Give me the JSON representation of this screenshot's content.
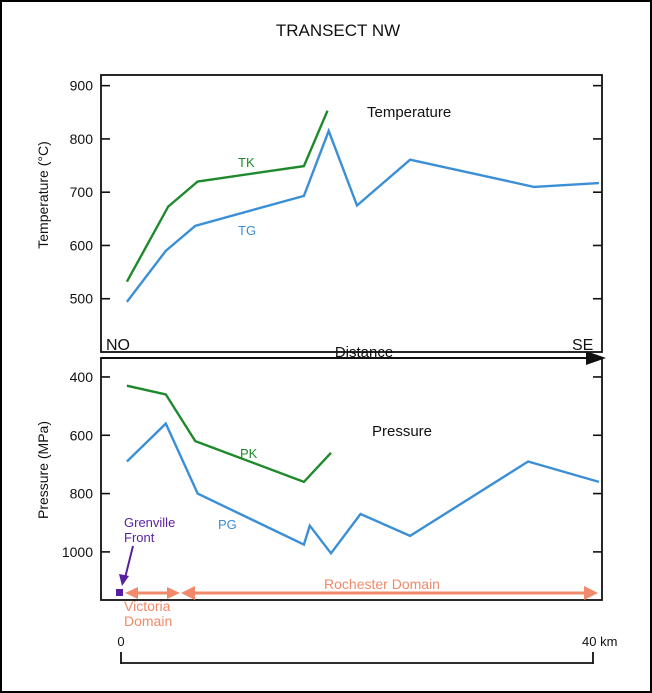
{
  "title": "TRANSECT NW",
  "colors": {
    "green": "#1e8a2c",
    "blue": "#3b8fd6",
    "purple": "#5a1fa0",
    "salmon": "#f08a6a",
    "axis": "#111111"
  },
  "chart_data": [
    {
      "type": "line",
      "title": "Temperature",
      "xlabel": "",
      "ylabel": "Temperature (°C)",
      "ylim": [
        400,
        920
      ],
      "xlim": [
        0,
        40
      ],
      "yticks": [
        500,
        600,
        700,
        800,
        900
      ],
      "series": [
        {
          "name": "TK",
          "color": "#1e8a2c",
          "points": [
            [
              0.5,
              532
            ],
            [
              4,
              673
            ],
            [
              6.5,
              720
            ],
            [
              15.5,
              749
            ],
            [
              17.5,
              853
            ]
          ]
        },
        {
          "name": "TG",
          "color": "#3b8fd6",
          "points": [
            [
              0.5,
              494
            ],
            [
              3.8,
              590
            ],
            [
              6.3,
              637
            ],
            [
              15.5,
              693
            ],
            [
              17.6,
              815
            ],
            [
              20,
              675
            ],
            [
              24.5,
              761
            ],
            [
              35,
              710
            ],
            [
              40.5,
              717
            ]
          ]
        }
      ]
    },
    {
      "type": "line",
      "title": "Pressure",
      "xlabel": "",
      "ylabel": "Pressure (MPa)",
      "ylim": [
        1165,
        335
      ],
      "xlim": [
        0,
        40
      ],
      "yticks": [
        400,
        600,
        800,
        1000
      ],
      "series": [
        {
          "name": "PK",
          "color": "#1e8a2c",
          "points": [
            [
              0.5,
              430
            ],
            [
              3.8,
              460
            ],
            [
              6.3,
              620
            ],
            [
              15.5,
              760
            ],
            [
              17.8,
              660
            ]
          ]
        },
        {
          "name": "PG",
          "color": "#3b8fd6",
          "points": [
            [
              0.5,
              690
            ],
            [
              3.8,
              560
            ],
            [
              6.5,
              800
            ],
            [
              15.5,
              975
            ],
            [
              16,
              910
            ],
            [
              17.8,
              1005
            ],
            [
              20.3,
              870
            ],
            [
              24.5,
              945
            ],
            [
              34.5,
              690
            ],
            [
              40.5,
              760
            ]
          ]
        }
      ]
    }
  ],
  "distance_axis": {
    "label": "Distance",
    "left_label": "NO",
    "right_label": "SE"
  },
  "annotations": {
    "grenville": [
      "Grenville",
      "Front"
    ],
    "victoria": [
      "Victoria",
      "Domain"
    ],
    "rochester": "Rochester Domain"
  },
  "scale_bar": {
    "start_label": "0",
    "end_label": "40 km"
  }
}
